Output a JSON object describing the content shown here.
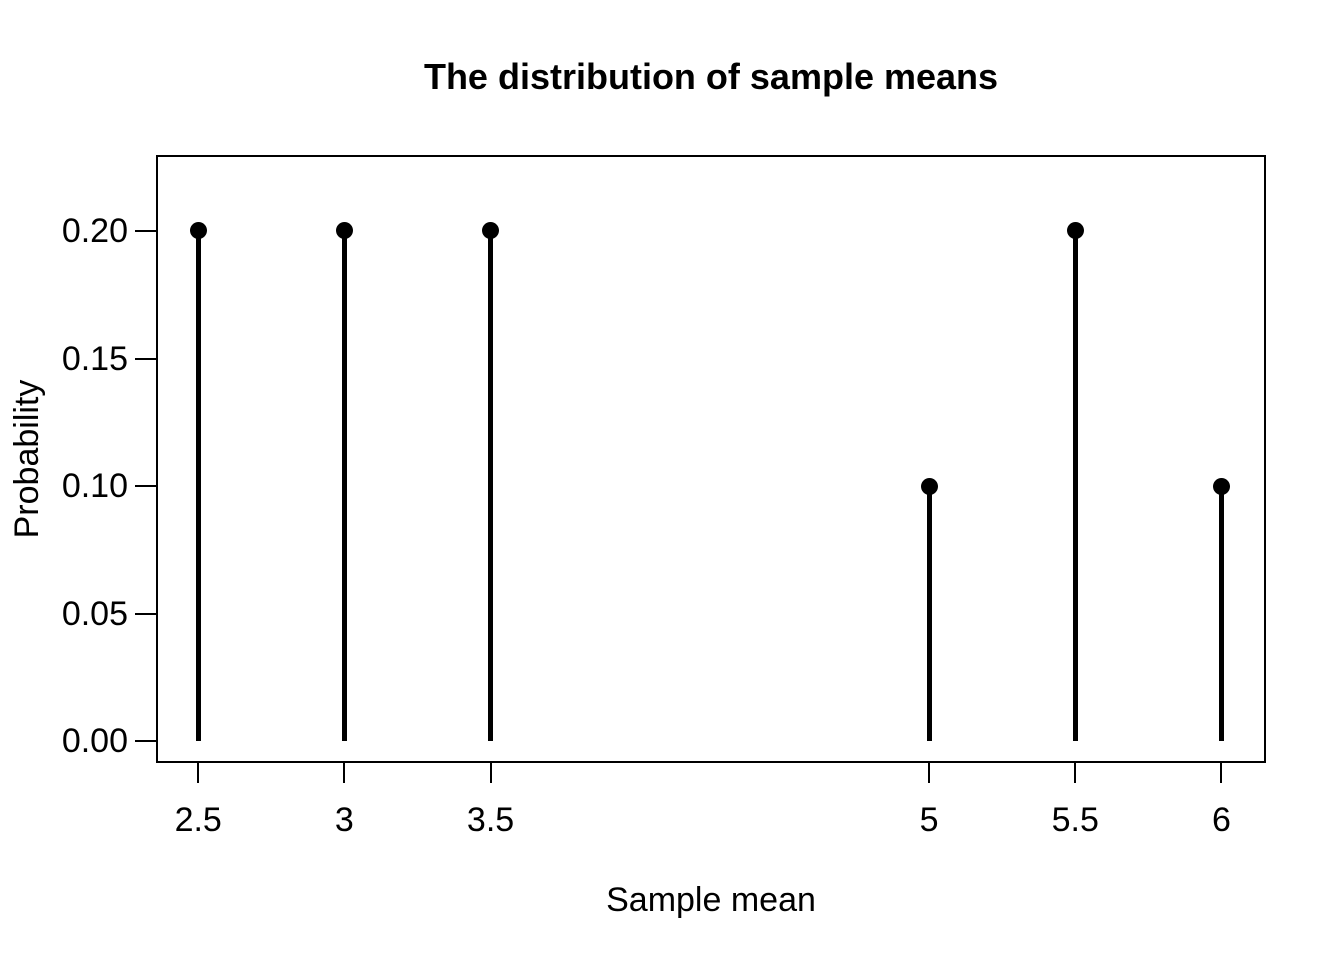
{
  "chart_data": {
    "type": "scatter",
    "subtype": "stem-plot",
    "title": "The distribution of sample means",
    "xlabel": "Sample mean",
    "ylabel": "Probability",
    "x": [
      2.5,
      3,
      3.5,
      5,
      5.5,
      6
    ],
    "y": [
      0.2,
      0.2,
      0.2,
      0.1,
      0.2,
      0.1
    ],
    "x_tick_values": [
      2.5,
      3,
      3.5,
      5,
      5.5,
      6
    ],
    "x_tick_labels": [
      "2.5",
      "3",
      "3.5",
      "5",
      "5.5",
      "6"
    ],
    "y_tick_values": [
      0.0,
      0.05,
      0.1,
      0.15,
      0.2
    ],
    "y_tick_labels": [
      "0.00",
      "0.05",
      "0.10",
      "0.15",
      "0.20"
    ],
    "xlim": [
      2.359,
      6.149
    ],
    "ylim": [
      -0.0082,
      0.2294
    ],
    "grid": false,
    "legend": "none",
    "marker": "filled-circle",
    "stem_baseline": 0,
    "colors": {
      "stems": "#000000",
      "points": "#000000",
      "text": "#000000",
      "frame": "#000000",
      "background": "#ffffff"
    }
  }
}
